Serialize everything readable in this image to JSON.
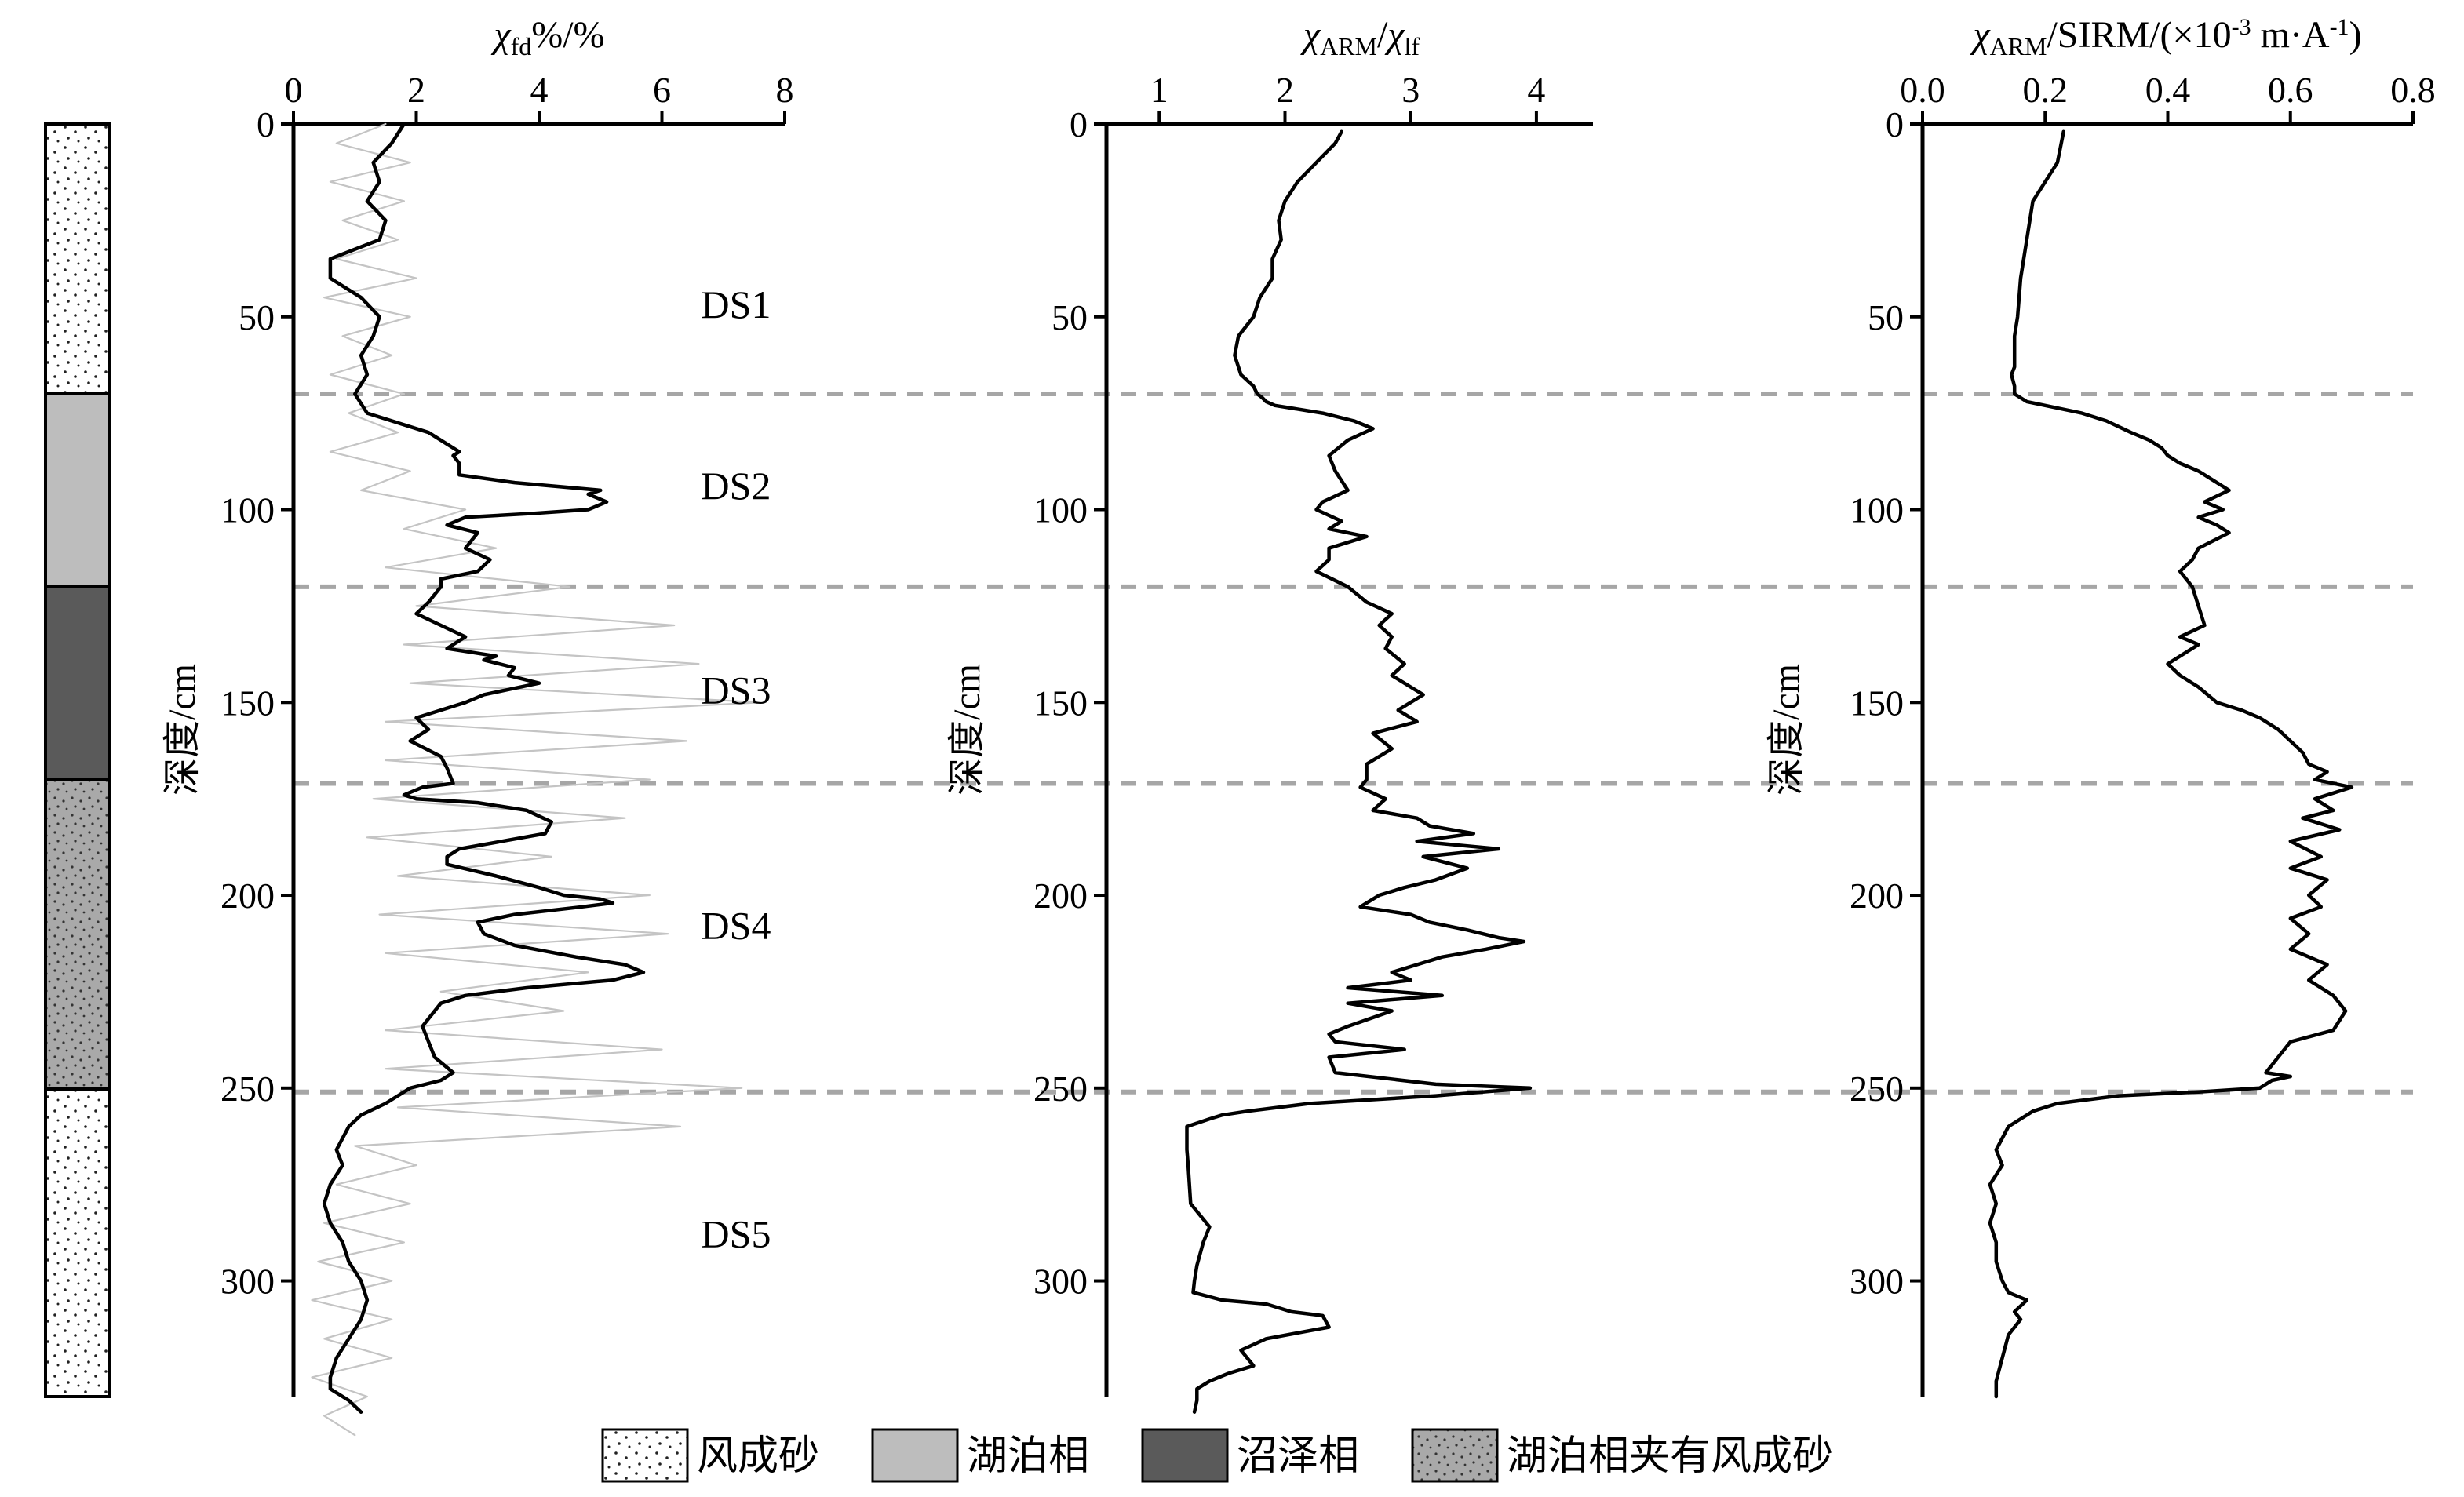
{
  "chart_data": [
    {
      "type": "line",
      "title": "",
      "xlabel": "χfd%/%",
      "xlabel_parts": {
        "symbol": "χ",
        "sub": "fd",
        "rest": "%/%"
      },
      "ylabel": "深度/cm",
      "xlim": [
        0,
        8
      ],
      "xticks": [
        0,
        2,
        4,
        6,
        8
      ],
      "ylim": [
        330,
        0
      ],
      "yticks": [
        0,
        50,
        100,
        150,
        200,
        250,
        300
      ],
      "grid": false,
      "series": [
        {
          "style": "thin-gray-raw",
          "x": [
            1.5,
            0.7,
            1.9,
            0.6,
            1.8,
            0.8,
            1.7,
            0.7,
            2.0,
            0.5,
            1.9,
            0.8,
            1.6,
            0.6,
            1.8,
            0.9,
            1.7,
            0.6,
            1.9,
            1.1,
            2.8,
            1.8,
            3.3,
            1.5,
            4.5,
            2.0,
            6.2,
            1.8,
            6.6,
            1.9,
            7.6,
            1.5,
            6.4,
            1.5,
            5.8,
            1.3,
            5.4,
            1.2,
            4.2,
            1.7,
            5.8,
            1.4,
            6.1,
            1.5,
            4.8,
            2.4,
            4.4,
            1.5,
            6.0,
            1.5,
            7.3,
            1.7,
            6.3,
            1.0,
            2.0,
            0.7,
            1.9,
            0.5,
            1.8,
            0.4,
            1.6,
            0.3,
            1.6,
            0.5,
            1.6,
            0.3,
            1.2,
            0.5,
            1.0
          ],
          "y": [
            0,
            5,
            10,
            15,
            20,
            25,
            30,
            35,
            40,
            45,
            50,
            55,
            60,
            65,
            70,
            75,
            80,
            85,
            90,
            95,
            100,
            105,
            110,
            115,
            120,
            125,
            130,
            135,
            140,
            145,
            150,
            155,
            160,
            165,
            170,
            175,
            180,
            185,
            190,
            195,
            200,
            205,
            210,
            215,
            220,
            225,
            230,
            235,
            240,
            245,
            250,
            255,
            260,
            265,
            270,
            275,
            280,
            285,
            290,
            295,
            300,
            305,
            310,
            315,
            320,
            325,
            330,
            335,
            340
          ]
        },
        {
          "style": "thick-black-smoothed",
          "x": [
            1.8,
            1.6,
            1.3,
            1.4,
            1.2,
            1.5,
            1.4,
            0.6,
            0.6,
            1.1,
            1.4,
            1.3,
            1.1,
            1.2,
            1.0,
            1.2,
            2.2,
            2.7,
            2.6,
            2.7,
            2.7,
            3.6,
            5.0,
            4.8,
            5.1,
            4.8,
            3.9,
            2.8,
            2.5,
            3.0,
            2.8,
            3.2,
            3.0,
            2.4,
            2.4,
            2.2,
            2.0,
            2.4,
            2.8,
            2.5,
            3.3,
            3.1,
            3.6,
            3.5,
            4.0,
            3.7,
            3.1,
            2.8,
            2.4,
            2.0,
            2.2,
            1.9,
            2.4,
            2.5,
            2.6,
            2.1,
            1.8,
            2.0,
            3.0,
            3.8,
            4.2,
            4.1,
            3.4,
            2.7,
            2.5,
            2.5,
            3.3,
            4.0,
            4.4,
            5.0,
            5.2,
            4.7,
            3.6,
            3.0,
            3.1,
            3.6,
            4.6,
            5.4,
            5.7,
            5.2,
            3.8,
            2.8,
            2.4,
            2.2,
            2.1,
            2.2,
            2.3,
            2.6,
            2.4,
            1.9,
            1.5,
            1.1,
            0.9,
            0.8,
            0.7,
            0.8,
            0.6,
            0.5,
            0.6,
            0.8,
            0.9,
            1.1,
            1.2,
            1.1,
            0.9,
            0.7,
            0.6,
            0.6,
            0.9,
            1.1
          ],
          "y": [
            0,
            5,
            10,
            15,
            20,
            25,
            30,
            35,
            40,
            45,
            50,
            55,
            60,
            65,
            70,
            75,
            80,
            85,
            86,
            88,
            91,
            93,
            95,
            96,
            98,
            100,
            101,
            102,
            104,
            106,
            110,
            113,
            116,
            118,
            120,
            124,
            127,
            130,
            133,
            136,
            138,
            139,
            141,
            143,
            145,
            146,
            148,
            150,
            152,
            154,
            157,
            160,
            164,
            167,
            171,
            172,
            174,
            175,
            176,
            178,
            181,
            184,
            186,
            188,
            190,
            192,
            195,
            198,
            200,
            201,
            202,
            203,
            205,
            207,
            210,
            213,
            216,
            218,
            220,
            222,
            224,
            226,
            228,
            232,
            234,
            238,
            242,
            246,
            248,
            250,
            254,
            257,
            260,
            263,
            266,
            270,
            275,
            280,
            285,
            290,
            295,
            300,
            305,
            310,
            315,
            320,
            325,
            328,
            331,
            334
          ]
        }
      ],
      "zone_labels": [
        {
          "label": "DS1",
          "depth": 47
        },
        {
          "label": "DS2",
          "depth": 94
        },
        {
          "label": "DS3",
          "depth": 147
        },
        {
          "label": "DS4",
          "depth": 208
        },
        {
          "label": "DS5",
          "depth": 288
        }
      ]
    },
    {
      "type": "line",
      "title": "",
      "xlabel": "χARM/χlf",
      "xlabel_parts": {
        "symbol1": "χ",
        "sub1": "ARM",
        "sep": "/",
        "symbol2": "χ",
        "sub2": "lf"
      },
      "ylabel": "深度/cm",
      "xlim": [
        0.58,
        4.45
      ],
      "xticks": [
        1,
        2,
        3,
        4
      ],
      "ylim": [
        330,
        0
      ],
      "yticks": [
        0,
        50,
        100,
        150,
        200,
        250,
        300
      ],
      "grid": false,
      "series": [
        {
          "style": "thick-black",
          "x": [
            2.45,
            2.4,
            2.25,
            2.1,
            2.0,
            1.95,
            1.97,
            1.9,
            1.9,
            1.8,
            1.75,
            1.63,
            1.6,
            1.65,
            1.75,
            1.78,
            1.82,
            1.85,
            1.92,
            2.3,
            2.55,
            2.7,
            2.5,
            2.35,
            2.4,
            2.5,
            2.3,
            2.25,
            2.45,
            2.35,
            2.65,
            2.35,
            2.35,
            2.25,
            2.5,
            2.65,
            2.85,
            2.75,
            2.85,
            2.8,
            2.95,
            2.85,
            3.1,
            2.9,
            3.05,
            2.7,
            2.85,
            2.65,
            2.65,
            2.6,
            2.8,
            2.7,
            3.05,
            3.15,
            3.5,
            3.05,
            3.7,
            3.1,
            3.45,
            3.2,
            2.95,
            2.75,
            2.6,
            3.0,
            3.15,
            3.45,
            3.7,
            3.9,
            3.6,
            3.25,
            3.05,
            2.85,
            3.0,
            2.5,
            3.25,
            2.5,
            2.85,
            2.5,
            2.35,
            2.4,
            2.95,
            2.35,
            2.4,
            3.2,
            3.95,
            3.2,
            2.2,
            1.7,
            1.5,
            1.4,
            1.22,
            1.22,
            1.22,
            1.23,
            1.25,
            1.4,
            1.35,
            1.3,
            1.28,
            1.27,
            1.5,
            1.85,
            2.05,
            2.3,
            2.35,
            1.85,
            1.65,
            1.75,
            1.55,
            1.4,
            1.3,
            1.3,
            1.28
          ],
          "y": [
            2,
            5,
            10,
            15,
            20,
            25,
            30,
            35,
            40,
            45,
            50,
            55,
            60,
            65,
            68,
            70,
            71,
            72,
            73,
            75,
            77,
            79,
            82,
            86,
            90,
            95,
            98,
            100,
            103,
            105,
            107,
            110,
            113,
            116,
            120,
            124,
            127,
            130,
            133,
            136,
            140,
            143,
            148,
            152,
            155,
            158,
            162,
            166,
            170,
            172,
            175,
            178,
            180,
            182,
            184,
            186,
            188,
            190,
            193,
            196,
            198,
            200,
            203,
            205,
            207,
            209,
            211,
            212,
            214,
            216,
            218,
            220,
            222,
            224,
            226,
            228,
            230,
            234,
            236,
            238,
            240,
            242,
            246,
            249,
            250,
            252,
            254,
            256,
            257,
            258,
            260,
            263,
            266,
            270,
            280,
            286,
            290,
            296,
            300,
            303,
            305,
            306,
            308,
            309,
            312,
            315,
            318,
            322,
            324,
            326,
            328,
            331,
            334
          ]
        }
      ]
    },
    {
      "type": "line",
      "title": "",
      "xlabel": "χARM/SIRM/(×10-3 m·A-1)",
      "xlabel_parts": {
        "symbol": "χ",
        "sub": "ARM",
        "rest1": "/SIRM/(×10",
        "sup1": "-3",
        "rest2": " m·A",
        "sup2": "-1",
        "rest3": ")"
      },
      "ylabel": "深度/cm",
      "xlim": [
        0.0,
        0.8
      ],
      "xticks": [
        0.0,
        0.2,
        0.4,
        0.6,
        0.8
      ],
      "xtick_labels": [
        "0.0",
        "0.2",
        "0.4",
        "0.6",
        "0.8"
      ],
      "ylim": [
        330,
        0
      ],
      "yticks": [
        0,
        50,
        100,
        150,
        200,
        250,
        300
      ],
      "grid": false,
      "series": [
        {
          "style": "thick-black",
          "x": [
            0.23,
            0.22,
            0.2,
            0.18,
            0.17,
            0.16,
            0.155,
            0.15,
            0.15,
            0.15,
            0.145,
            0.15,
            0.15,
            0.16,
            0.17,
            0.2,
            0.26,
            0.3,
            0.34,
            0.37,
            0.39,
            0.4,
            0.42,
            0.45,
            0.47,
            0.5,
            0.46,
            0.49,
            0.45,
            0.48,
            0.5,
            0.45,
            0.44,
            0.42,
            0.44,
            0.45,
            0.46,
            0.42,
            0.45,
            0.42,
            0.4,
            0.42,
            0.45,
            0.48,
            0.52,
            0.55,
            0.58,
            0.6,
            0.62,
            0.63,
            0.66,
            0.64,
            0.7,
            0.64,
            0.67,
            0.62,
            0.68,
            0.6,
            0.65,
            0.6,
            0.66,
            0.63,
            0.65,
            0.6,
            0.63,
            0.6,
            0.66,
            0.63,
            0.67,
            0.69,
            0.67,
            0.6,
            0.58,
            0.56,
            0.6,
            0.57,
            0.55,
            0.45,
            0.32,
            0.22,
            0.18,
            0.16,
            0.14,
            0.12,
            0.13,
            0.11,
            0.12,
            0.11,
            0.12,
            0.12,
            0.13,
            0.14,
            0.17,
            0.15,
            0.16,
            0.14,
            0.13,
            0.12,
            0.12
          ],
          "y": [
            2,
            10,
            15,
            20,
            30,
            40,
            50,
            55,
            60,
            63,
            65,
            68,
            70,
            71,
            72,
            73,
            75,
            77,
            80,
            82,
            84,
            86,
            88,
            90,
            92,
            95,
            98,
            100,
            102,
            104,
            106,
            110,
            113,
            116,
            120,
            125,
            130,
            133,
            135,
            138,
            140,
            143,
            146,
            150,
            152,
            154,
            157,
            160,
            163,
            166,
            168,
            170,
            172,
            175,
            178,
            180,
            183,
            186,
            190,
            193,
            196,
            200,
            203,
            206,
            210,
            214,
            218,
            222,
            226,
            230,
            235,
            238,
            242,
            246,
            247,
            248,
            250,
            251,
            252,
            254,
            256,
            258,
            260,
            266,
            270,
            275,
            280,
            285,
            290,
            295,
            300,
            303,
            305,
            308,
            310,
            314,
            320,
            326,
            330
          ]
        }
      ]
    }
  ],
  "lithology_column": {
    "units": [
      {
        "facies": "风成砂",
        "top": 0,
        "bottom": 70
      },
      {
        "facies": "湖泊相",
        "top": 70,
        "bottom": 120
      },
      {
        "facies": "沼泽相",
        "top": 120,
        "bottom": 170
      },
      {
        "facies": "湖泊相夹有风成砂",
        "top": 170,
        "bottom": 250
      },
      {
        "facies": "风成砂",
        "top": 250,
        "bottom": 330
      }
    ]
  },
  "zone_boundaries": [
    70,
    120,
    171,
    251
  ],
  "legend": [
    {
      "label": "风成砂",
      "pattern": "sparse-dots"
    },
    {
      "label": "湖泊相",
      "pattern": "light-gray"
    },
    {
      "label": "沼泽相",
      "pattern": "dark-gray"
    },
    {
      "label": "湖泊相夹有风成砂",
      "pattern": "gray-dots"
    }
  ],
  "colors": {
    "line": "#000000",
    "raw_line": "#c4c4c4",
    "boundary": "#a6a6a6",
    "lake": "#bdbdbd",
    "swamp": "#5a5a5a",
    "lake_sand": "#a9a9a9"
  }
}
